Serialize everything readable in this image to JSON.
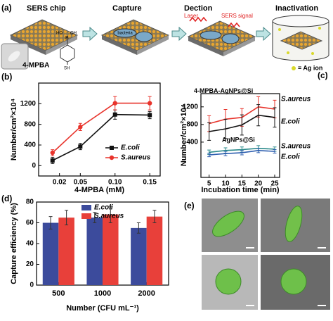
{
  "panel_a": {
    "label": "(a)",
    "steps": [
      "SERS chip",
      "Capture",
      "Dection",
      "Inactivation"
    ],
    "laser": "Laser",
    "sers_signal": "SERS signal",
    "bacteria": "bacteria",
    "reagent": "4-MPBA",
    "structure_labels": [
      "B",
      "OH",
      "HO",
      "SH"
    ],
    "ag_ion_legend": "= Ag ion"
  },
  "panel_e": {
    "label": "(e)"
  },
  "chart_data": [
    {
      "type": "line",
      "label": "(b)",
      "x": [
        0.01,
        0.05,
        0.1,
        0.15
      ],
      "xlim": [
        -0.01,
        0.165
      ],
      "xticks": [
        0.02,
        0.05,
        {
          "value": 0.1,
          "label": "0.10"
        },
        0.15
      ],
      "ylim": [
        -200,
        1600
      ],
      "yticks": [
        0,
        400,
        800,
        1200
      ],
      "xlabel": "4-MPBA (mM)",
      "ylabel": "Number/cm²×10⁴",
      "legend": "lower right",
      "series": [
        {
          "name": "E.coli",
          "color": "#111111",
          "marker": "square",
          "values": [
            100,
            370,
            990,
            980
          ],
          "errors": [
            60,
            60,
            90,
            70
          ]
        },
        {
          "name": "S.aureus",
          "color": "#e8332b",
          "marker": "circle",
          "values": [
            250,
            750,
            1210,
            1210
          ],
          "errors": [
            60,
            70,
            130,
            130
          ]
        }
      ]
    },
    {
      "type": "line",
      "label": "(c)",
      "x": [
        5,
        10,
        15,
        20,
        25
      ],
      "xlim": [
        2.5,
        26.5
      ],
      "xticks": [
        5,
        10,
        15,
        20,
        25
      ],
      "ylim": [
        -400,
        1500
      ],
      "yticks": [
        400,
        800,
        1200
      ],
      "xlabel": "Incubation time (min)",
      "ylabel": "Number/cm²×10⁴",
      "legend": "end labels",
      "annotations": [
        "4-MPBA-AgNPs@Si",
        "AgNPs@Si"
      ],
      "series": [
        {
          "name": "S.aureus",
          "color": "#e8332b",
          "marker": "none",
          "values": [
            820,
            920,
            960,
            1200,
            1150
          ],
          "errors": [
            180,
            220,
            200,
            230,
            200
          ]
        },
        {
          "name": "E.coli",
          "color": "#111111",
          "marker": "none",
          "values": [
            640,
            700,
            790,
            1010,
            960
          ],
          "errors": [
            200,
            220,
            230,
            240,
            220
          ]
        },
        {
          "name": "S.aureus",
          "color": "#2a8a8a",
          "marker": "none",
          "values": [
            170,
            210,
            230,
            260,
            240
          ],
          "errors": [
            50,
            60,
            60,
            60,
            50
          ]
        },
        {
          "name": "E.coli",
          "color": "#2f5fb0",
          "marker": "none",
          "values": [
            110,
            140,
            160,
            210,
            190
          ],
          "errors": [
            40,
            50,
            50,
            50,
            40
          ]
        }
      ]
    },
    {
      "type": "bar",
      "label": "(d)",
      "categories": [
        "500",
        "1000",
        "2000"
      ],
      "ylim": [
        0,
        80
      ],
      "yticks": [
        0,
        20,
        40,
        60,
        80
      ],
      "xlabel": "Number (CFU mL⁻¹)",
      "ylabel": "Capture efficiency (%)",
      "legend": "upper center",
      "series": [
        {
          "name": "E.coli",
          "color": "#3c4b9c",
          "values": [
            60,
            65,
            55
          ],
          "errors": [
            6,
            5,
            5
          ]
        },
        {
          "name": "S.aureus",
          "color": "#e8403a",
          "values": [
            65,
            68,
            66
          ],
          "errors": [
            7,
            8,
            6
          ]
        }
      ]
    }
  ]
}
